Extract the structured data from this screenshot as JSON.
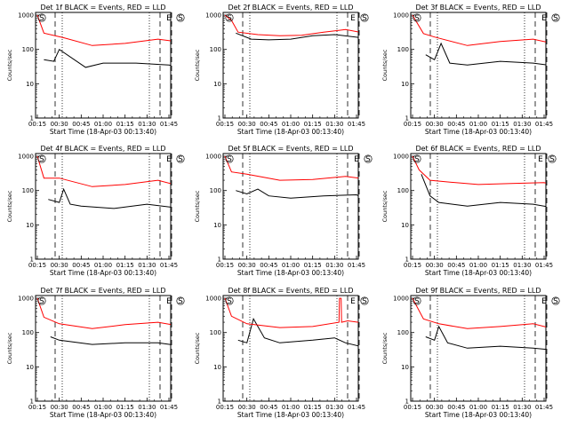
{
  "chart_data": [
    {
      "type": "line",
      "title": "Det 1f BLACK = Events, RED = LLD",
      "xlabel": "Start Time (18-Apr-03 00:13:40)",
      "ylabel": "Counts/sec",
      "x_ticks": [
        "00:15",
        "00:30",
        "00:45",
        "01:00",
        "01:15",
        "01:30",
        "01:45"
      ],
      "y_ticks": [
        "1",
        "10",
        "100",
        "1000"
      ],
      "yscale": "log",
      "ylim": [
        1,
        1200
      ],
      "markers": [
        "S",
        "E",
        "S"
      ],
      "series": [
        {
          "color": "#000000",
          "x": [
            0.3,
            0.75,
            1.0,
            2.2,
            3.0,
            4.5,
            6.0,
            6.6
          ],
          "y": [
            50,
            45,
            100,
            30,
            40,
            40,
            35,
            30
          ]
        },
        {
          "color": "#ff0000",
          "x": [
            0,
            0.3,
            1.2,
            2.5,
            4.0,
            5.5,
            6.6,
            6.75,
            6.8
          ],
          "y": [
            1000,
            300,
            220,
            130,
            150,
            200,
            160,
            500,
            1000
          ]
        }
      ]
    },
    {
      "type": "line",
      "title": "Det 2f BLACK = Events, RED = LLD",
      "xlabel": "Start Time (18-Apr-03 00:13:40)",
      "ylabel": "Counts/sec",
      "x_ticks": [
        "00:15",
        "00:30",
        "00:45",
        "01:00",
        "01:15",
        "01:30",
        "01:45"
      ],
      "y_ticks": [
        "1",
        "10",
        "100",
        "1000"
      ],
      "yscale": "log",
      "ylim": [
        1,
        1200
      ],
      "markers": [
        "S",
        "E",
        "S"
      ],
      "series": [
        {
          "color": "#000000",
          "x": [
            0.5,
            1.2,
            2.0,
            3.0,
            4.0,
            5.0,
            6.5
          ],
          "y": [
            300,
            200,
            190,
            200,
            250,
            270,
            210
          ]
        },
        {
          "color": "#ff0000",
          "x": [
            0,
            0.3,
            0.6,
            1.5,
            2.5,
            3.5,
            4.5,
            5.5,
            6.6,
            6.8
          ],
          "y": [
            1000,
            700,
            320,
            270,
            250,
            260,
            320,
            380,
            280,
            1000
          ]
        }
      ]
    },
    {
      "type": "line",
      "title": "Det 3f BLACK = Events, RED = LLD",
      "xlabel": "Start Time (18-Apr-03 00:13:40)",
      "ylabel": "Counts/sec",
      "x_ticks": [
        "00:15",
        "00:30",
        "00:45",
        "01:00",
        "01:15",
        "01:30",
        "01:45"
      ],
      "y_ticks": [
        "1",
        "10",
        "100",
        "1000"
      ],
      "yscale": "log",
      "ylim": [
        1,
        1200
      ],
      "markers": [
        "S",
        "E",
        "S"
      ],
      "series": [
        {
          "color": "#000000",
          "x": [
            0.6,
            1.0,
            1.3,
            1.7,
            2.5,
            4.0,
            5.5,
            6.6
          ],
          "y": [
            70,
            50,
            150,
            40,
            35,
            45,
            40,
            32
          ]
        },
        {
          "color": "#ff0000",
          "x": [
            0,
            0.5,
            1.0,
            2.5,
            4.0,
            5.5,
            6.6,
            6.8
          ],
          "y": [
            1000,
            290,
            230,
            130,
            170,
            200,
            140,
            1000
          ]
        }
      ]
    },
    {
      "type": "line",
      "title": "Det 4f BLACK = Events, RED = LLD",
      "xlabel": "Start Time (18-Apr-03 00:13:40)",
      "ylabel": "Counts/sec",
      "x_ticks": [
        "00:15",
        "00:30",
        "00:45",
        "01:00",
        "01:15",
        "01:30",
        "01:45"
      ],
      "y_ticks": [
        "1",
        "10",
        "100",
        "1000"
      ],
      "yscale": "log",
      "ylim": [
        1,
        1200
      ],
      "markers": [
        "S",
        "E",
        "S"
      ],
      "series": [
        {
          "color": "#000000",
          "x": [
            0.5,
            1.0,
            1.2,
            1.5,
            2.0,
            3.5,
            5.0,
            6.6
          ],
          "y": [
            55,
            45,
            110,
            40,
            35,
            30,
            40,
            30
          ]
        },
        {
          "color": "#ff0000",
          "x": [
            0,
            0.3,
            1.0,
            2.5,
            4.0,
            5.5,
            6.6,
            6.8
          ],
          "y": [
            1000,
            230,
            230,
            130,
            150,
            200,
            130,
            1000
          ]
        }
      ]
    },
    {
      "type": "line",
      "title": "Det 5f BLACK = Events, RED = LLD",
      "xlabel": "Start Time (18-Apr-03 00:13:40)",
      "ylabel": "Counts/sec",
      "x_ticks": [
        "00:15",
        "00:30",
        "00:45",
        "01:00",
        "01:15",
        "01:30",
        "01:45"
      ],
      "y_ticks": [
        "1",
        "10",
        "100",
        "1000"
      ],
      "yscale": "log",
      "ylim": [
        1,
        1200
      ],
      "markers": [
        "S",
        "E",
        "S"
      ],
      "series": [
        {
          "color": "#000000",
          "x": [
            0.5,
            1.0,
            1.5,
            2.0,
            3.0,
            4.5,
            6.0,
            6.6
          ],
          "y": [
            100,
            80,
            110,
            70,
            60,
            70,
            75,
            50
          ]
        },
        {
          "color": "#ff0000",
          "x": [
            0,
            0.3,
            1.0,
            2.5,
            4.0,
            5.5,
            6.6,
            6.8
          ],
          "y": [
            1000,
            350,
            300,
            200,
            210,
            260,
            210,
            1000
          ]
        }
      ]
    },
    {
      "type": "line",
      "title": "Det 6f BLACK = Events, RED = LLD",
      "xlabel": "Start Time (18-Apr-03 00:13:40)",
      "ylabel": "Counts/sec",
      "x_ticks": [
        "00:15",
        "00:30",
        "00:45",
        "01:00",
        "01:15",
        "01:30",
        "01:45"
      ],
      "y_ticks": [
        "1",
        "10",
        "100",
        "1000"
      ],
      "yscale": "log",
      "ylim": [
        1,
        1200
      ],
      "markers": [
        "S",
        "E",
        "S"
      ],
      "series": [
        {
          "color": "#000000",
          "x": [
            0.4,
            0.8,
            1.2,
            2.5,
            4.0,
            5.5,
            6.6
          ],
          "y": [
            300,
            70,
            45,
            35,
            45,
            40,
            30
          ]
        },
        {
          "color": "#ff0000",
          "x": [
            0,
            0.3,
            0.8,
            1.5,
            3.0,
            4.5,
            6.0,
            6.6,
            6.8
          ],
          "y": [
            1000,
            400,
            200,
            180,
            150,
            160,
            170,
            130,
            1000
          ]
        }
      ]
    },
    {
      "type": "line",
      "title": "Det 7f BLACK = Events, RED = LLD",
      "xlabel": "Start Time (18-Apr-03 00:13:40)",
      "ylabel": "Counts/sec",
      "x_ticks": [
        "00:15",
        "00:30",
        "00:45",
        "01:00",
        "01:15",
        "01:30",
        "01:45"
      ],
      "y_ticks": [
        "1",
        "10",
        "100",
        "1000"
      ],
      "yscale": "log",
      "ylim": [
        1,
        1200
      ],
      "markers": [
        "S",
        "E",
        "S"
      ],
      "series": [
        {
          "color": "#000000",
          "x": [
            0.6,
            1.0,
            2.5,
            4.0,
            5.5,
            6.6
          ],
          "y": [
            75,
            60,
            45,
            50,
            50,
            40
          ]
        },
        {
          "color": "#ff0000",
          "x": [
            0,
            0.3,
            1.0,
            2.5,
            4.0,
            5.5,
            6.6,
            6.8
          ],
          "y": [
            1000,
            280,
            180,
            130,
            170,
            200,
            150,
            1000
          ]
        }
      ]
    },
    {
      "type": "line",
      "title": "Det 8f BLACK = Events, RED = LLD",
      "xlabel": "Start Time (18-Apr-03 00:13:40)",
      "ylabel": "Counts/sec",
      "x_ticks": [
        "00:15",
        "00:30",
        "00:45",
        "01:00",
        "01:15",
        "01:30",
        "01:45"
      ],
      "y_ticks": [
        "1",
        "10",
        "100",
        "1000"
      ],
      "yscale": "log",
      "ylim": [
        1,
        1200
      ],
      "markers": [
        "S",
        "E",
        "S"
      ],
      "series": [
        {
          "color": "#000000",
          "x": [
            0.6,
            1.0,
            1.3,
            1.8,
            2.5,
            4.0,
            5.0,
            5.5,
            6.5
          ],
          "y": [
            60,
            50,
            250,
            70,
            50,
            60,
            70,
            50,
            35
          ]
        },
        {
          "color": "#ff0000",
          "x": [
            0,
            0.3,
            1.0,
            2.5,
            4.0,
            5.2,
            5.22,
            5.3,
            5.32,
            5.6,
            6.6,
            6.8
          ],
          "y": [
            1000,
            300,
            180,
            140,
            150,
            200,
            1000,
            1000,
            200,
            220,
            180,
            1000
          ]
        }
      ]
    },
    {
      "type": "line",
      "title": "Det 9f BLACK = Events, RED = LLD",
      "xlabel": "Start Time (18-Apr-03 00:13:40)",
      "ylabel": "Counts/sec",
      "x_ticks": [
        "00:15",
        "00:30",
        "00:45",
        "01:00",
        "01:15",
        "01:30",
        "01:45"
      ],
      "y_ticks": [
        "1",
        "10",
        "100",
        "1000"
      ],
      "yscale": "log",
      "ylim": [
        1,
        1200
      ],
      "markers": [
        "S",
        "E",
        "S"
      ],
      "series": [
        {
          "color": "#000000",
          "x": [
            0.6,
            1.0,
            1.2,
            1.6,
            2.5,
            4.0,
            5.5,
            6.6
          ],
          "y": [
            75,
            60,
            150,
            50,
            35,
            40,
            35,
            30
          ]
        },
        {
          "color": "#ff0000",
          "x": [
            0,
            0.5,
            1.2,
            2.5,
            4.0,
            5.5,
            6.6,
            6.8
          ],
          "y": [
            1000,
            250,
            180,
            130,
            150,
            180,
            120,
            1000
          ]
        }
      ]
    }
  ]
}
